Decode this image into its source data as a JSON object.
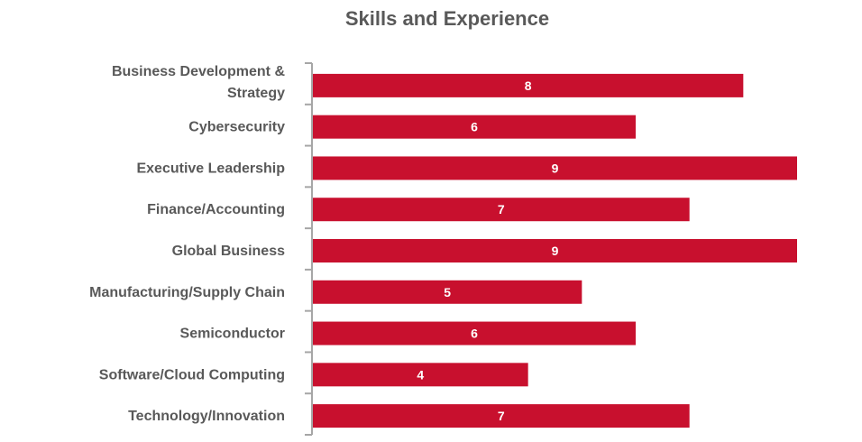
{
  "chart_data": {
    "type": "bar",
    "orientation": "horizontal",
    "title": "Skills and Experience",
    "categories": [
      [
        "Business Development &",
        "Strategy"
      ],
      [
        "Cybersecurity"
      ],
      [
        "Executive Leadership"
      ],
      [
        "Finance/Accounting"
      ],
      [
        "Global Business"
      ],
      [
        "Manufacturing/Supply Chain"
      ],
      [
        "Semiconductor"
      ],
      [
        "Software/Cloud Computing"
      ],
      [
        "Technology/Innovation"
      ]
    ],
    "values": [
      8,
      6,
      9,
      7,
      9,
      5,
      6,
      4,
      7
    ],
    "xlim": [
      0,
      9
    ],
    "bar_color": "#C8102E",
    "value_label_color": "#ffffff",
    "text_color": "#595959",
    "axis_color": "#a6a6a6",
    "grid": false,
    "legend": "none"
  }
}
